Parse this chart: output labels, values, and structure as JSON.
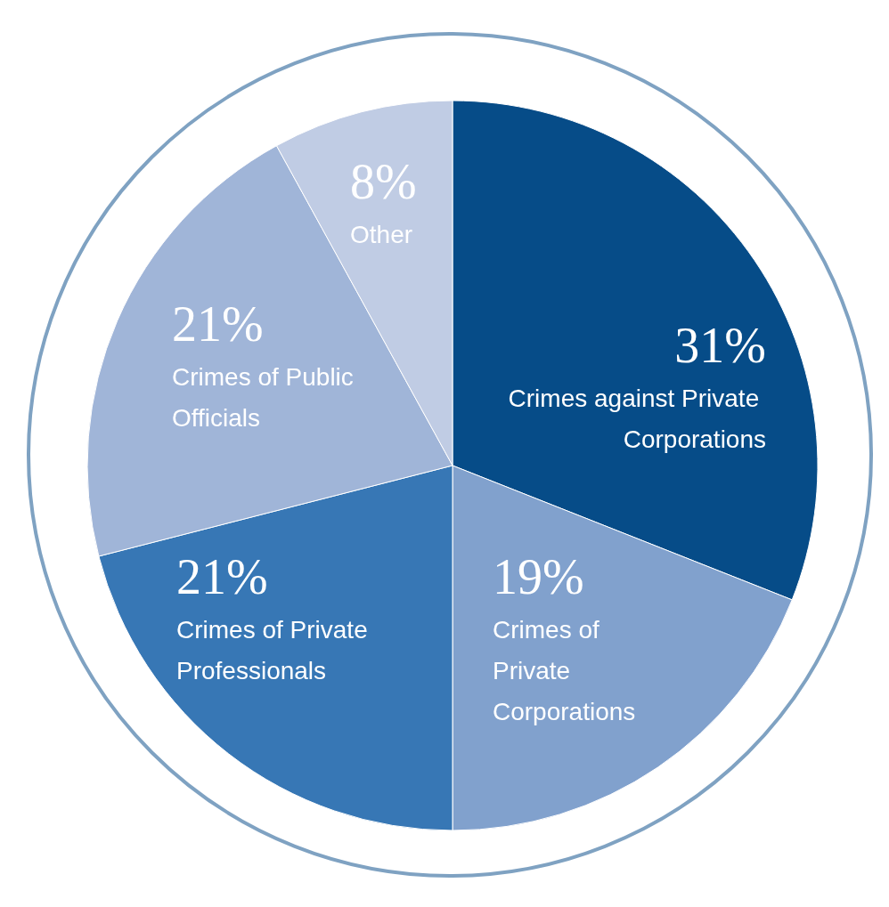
{
  "chart_data": {
    "type": "pie",
    "categories": [
      "Crimes against Private Corporations",
      "Crimes of Private Corporations",
      "Crimes of Private Professionals",
      "Crimes of Public Officials",
      "Other"
    ],
    "values": [
      31,
      19,
      21,
      21,
      8
    ],
    "value_labels": [
      "31%",
      "19%",
      "21%",
      "21%",
      "8%"
    ],
    "colors": [
      "#064c88",
      "#81a1cd",
      "#3777b5",
      "#a0b5d8",
      "#c0cce4"
    ],
    "legend": false
  }
}
